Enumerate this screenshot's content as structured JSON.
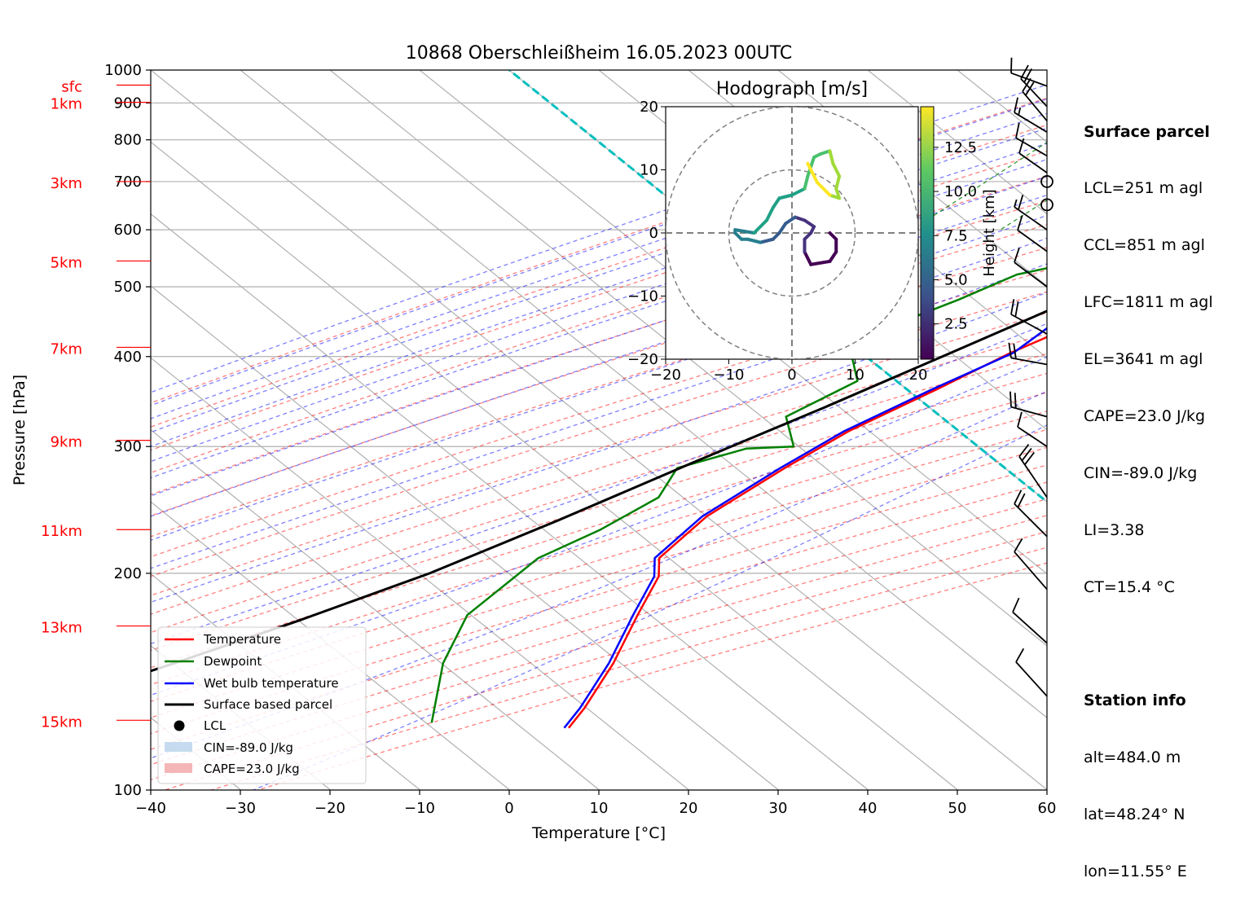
{
  "chart_data": {
    "type": "line",
    "title": "10868 Oberschleißheim 16.05.2023 00UTC",
    "xlabel": "Temperature [°C]",
    "ylabel": "Pressure [hPa]",
    "x_ticks": [
      "−40",
      "−30",
      "−20",
      "−10",
      "0",
      "10",
      "20",
      "30",
      "40",
      "50",
      "60"
    ],
    "y_ticks": [
      "100",
      "200",
      "300",
      "400",
      "500",
      "600",
      "700",
      "800",
      "900",
      "1000"
    ],
    "xlim": [
      -40,
      60
    ],
    "ylim": [
      1000,
      100
    ],
    "y_scale": "log",
    "skew": true,
    "height_labels": [
      {
        "label": "15km",
        "p": 125
      },
      {
        "label": "13km",
        "p": 169
      },
      {
        "label": "11km",
        "p": 230
      },
      {
        "label": "9km",
        "p": 306
      },
      {
        "label": "7km",
        "p": 412
      },
      {
        "label": "5km",
        "p": 543
      },
      {
        "label": "3km",
        "p": 700
      },
      {
        "label": "1km",
        "p": 902
      },
      {
        "label": "sfc",
        "p": 953
      }
    ],
    "series": [
      {
        "name": "Temperature",
        "color": "#ff0000",
        "points": [
          [
            12,
            953
          ],
          [
            13.4,
            905
          ],
          [
            10.6,
            855
          ],
          [
            8,
            785
          ],
          [
            5,
            700
          ],
          [
            3.2,
            620
          ],
          [
            2,
            565
          ],
          [
            0.2,
            510
          ],
          [
            -2.8,
            460
          ],
          [
            -3,
            425
          ],
          [
            -4.8,
            405
          ],
          [
            -8,
            360
          ],
          [
            -12,
            315
          ],
          [
            -14,
            280
          ],
          [
            -16,
            240
          ],
          [
            -15.5,
            210
          ],
          [
            -13,
            198
          ],
          [
            -10,
            175
          ],
          [
            -6,
            150
          ],
          [
            -3,
            130
          ],
          [
            -2,
            122
          ]
        ]
      },
      {
        "name": "Dewpoint",
        "color": "#008000",
        "points": [
          [
            9.5,
            953
          ],
          [
            9,
            920
          ],
          [
            8.5,
            880
          ],
          [
            7,
            820
          ],
          [
            4.5,
            760
          ],
          [
            2,
            700
          ],
          [
            -5,
            600
          ],
          [
            -13,
            592
          ],
          [
            -6,
            560
          ],
          [
            -15,
            520
          ],
          [
            -18,
            480
          ],
          [
            -22,
            440
          ],
          [
            -22,
            400
          ],
          [
            -18,
            370
          ],
          [
            -21,
            330
          ],
          [
            -16,
            300
          ],
          [
            -21,
            298
          ],
          [
            -26,
            280
          ],
          [
            -24,
            255
          ],
          [
            -26,
            230
          ],
          [
            -29,
            210
          ],
          [
            -29,
            175
          ],
          [
            -25,
            150
          ],
          [
            -18,
            124
          ]
        ]
      },
      {
        "name": "Wet bulb temperature",
        "color": "#0000ff",
        "points": [
          [
            10.3,
            953
          ],
          [
            11,
            905
          ],
          [
            10,
            860
          ],
          [
            7.5,
            785
          ],
          [
            4.8,
            700
          ],
          [
            2.8,
            620
          ],
          [
            -0.5,
            592
          ],
          [
            2.5,
            580
          ],
          [
            0.5,
            520
          ],
          [
            -4,
            455
          ],
          [
            -4.5,
            405
          ],
          [
            -8.5,
            360
          ],
          [
            -12.5,
            315
          ],
          [
            -14.5,
            280
          ],
          [
            -16.5,
            240
          ],
          [
            -16,
            210
          ],
          [
            -13.5,
            198
          ],
          [
            -10.5,
            175
          ],
          [
            -6.5,
            150
          ],
          [
            -3.5,
            130
          ],
          [
            -2.5,
            122
          ]
        ]
      },
      {
        "name": "Surface based parcel",
        "color": "#000000",
        "points": [
          [
            12,
            953
          ],
          [
            10.6,
            935
          ],
          [
            9,
            870
          ],
          [
            7.2,
            780
          ],
          [
            4.5,
            690
          ],
          [
            1.5,
            600
          ],
          [
            -1.5,
            540
          ],
          [
            -6,
            470
          ],
          [
            -11,
            410
          ],
          [
            -18,
            340
          ],
          [
            -25,
            285
          ],
          [
            -32,
            237
          ],
          [
            -39,
            200
          ],
          [
            -47,
            172
          ],
          [
            -55,
            150
          ],
          [
            -63,
            132
          ],
          [
            -70,
            120
          ]
        ]
      }
    ],
    "lcl": {
      "label": "LCL",
      "t": 10.6,
      "p": 935
    },
    "shading": [
      {
        "label": "CIN=-89.0 J/kg",
        "color": "#c6dbef"
      },
      {
        "label": "CAPE=23.0 J/kg",
        "color": "#f4b6b6"
      }
    ],
    "hodograph": {
      "title": "Hodograph [m/s]",
      "ticks": [
        "−20",
        "−10",
        "0",
        "10",
        "20"
      ],
      "range": [
        -20,
        20
      ],
      "colorbar_label": "Height [km]",
      "colorbar_ticks": [
        "2.5",
        "5.0",
        "7.5",
        "10.0",
        "12.5"
      ],
      "colorbar_range": [
        0.5,
        14.8
      ],
      "trace": [
        [
          6,
          0
        ],
        [
          7,
          -1
        ],
        [
          7,
          -3
        ],
        [
          6,
          -4.5
        ],
        [
          3,
          -5
        ],
        [
          2,
          -3
        ],
        [
          2,
          -1
        ],
        [
          3,
          0
        ],
        [
          3.5,
          1
        ],
        [
          2,
          2
        ],
        [
          0.5,
          2.5
        ],
        [
          -1,
          1.5
        ],
        [
          -2,
          0
        ],
        [
          -3,
          -1
        ],
        [
          -5,
          -1.5
        ],
        [
          -7,
          -1
        ],
        [
          -8,
          -1
        ],
        [
          -9,
          0
        ],
        [
          -9,
          0.5
        ],
        [
          -6,
          0
        ],
        [
          -4,
          2
        ],
        [
          -3,
          4
        ],
        [
          -2,
          5.5
        ],
        [
          0,
          6
        ],
        [
          2,
          7
        ],
        [
          2.5,
          9
        ],
        [
          3.5,
          12
        ],
        [
          4.5,
          12.5
        ],
        [
          6,
          13
        ],
        [
          6.5,
          11
        ],
        [
          7.5,
          9
        ],
        [
          7,
          7
        ],
        [
          7.5,
          5.5
        ],
        [
          6,
          6
        ],
        [
          4,
          8
        ],
        [
          3,
          10
        ],
        [
          2.5,
          11
        ]
      ]
    }
  },
  "info_panel": {
    "surface_header": "Surface parcel",
    "lcl": "LCL=251 m agl",
    "ccl": "CCL=851 m agl",
    "lfc": "LFC=1811 m agl",
    "el": "EL=3641 m agl",
    "cape": "CAPE=23.0 J/kg",
    "cin": "CIN=-89.0 J/kg",
    "li": "LI=3.38",
    "ct": "CT=15.4 °C",
    "station_header": "Station info",
    "alt": "alt=484.0 m",
    "lat": "lat=48.24° N",
    "lon": "lon=11.55° E"
  }
}
